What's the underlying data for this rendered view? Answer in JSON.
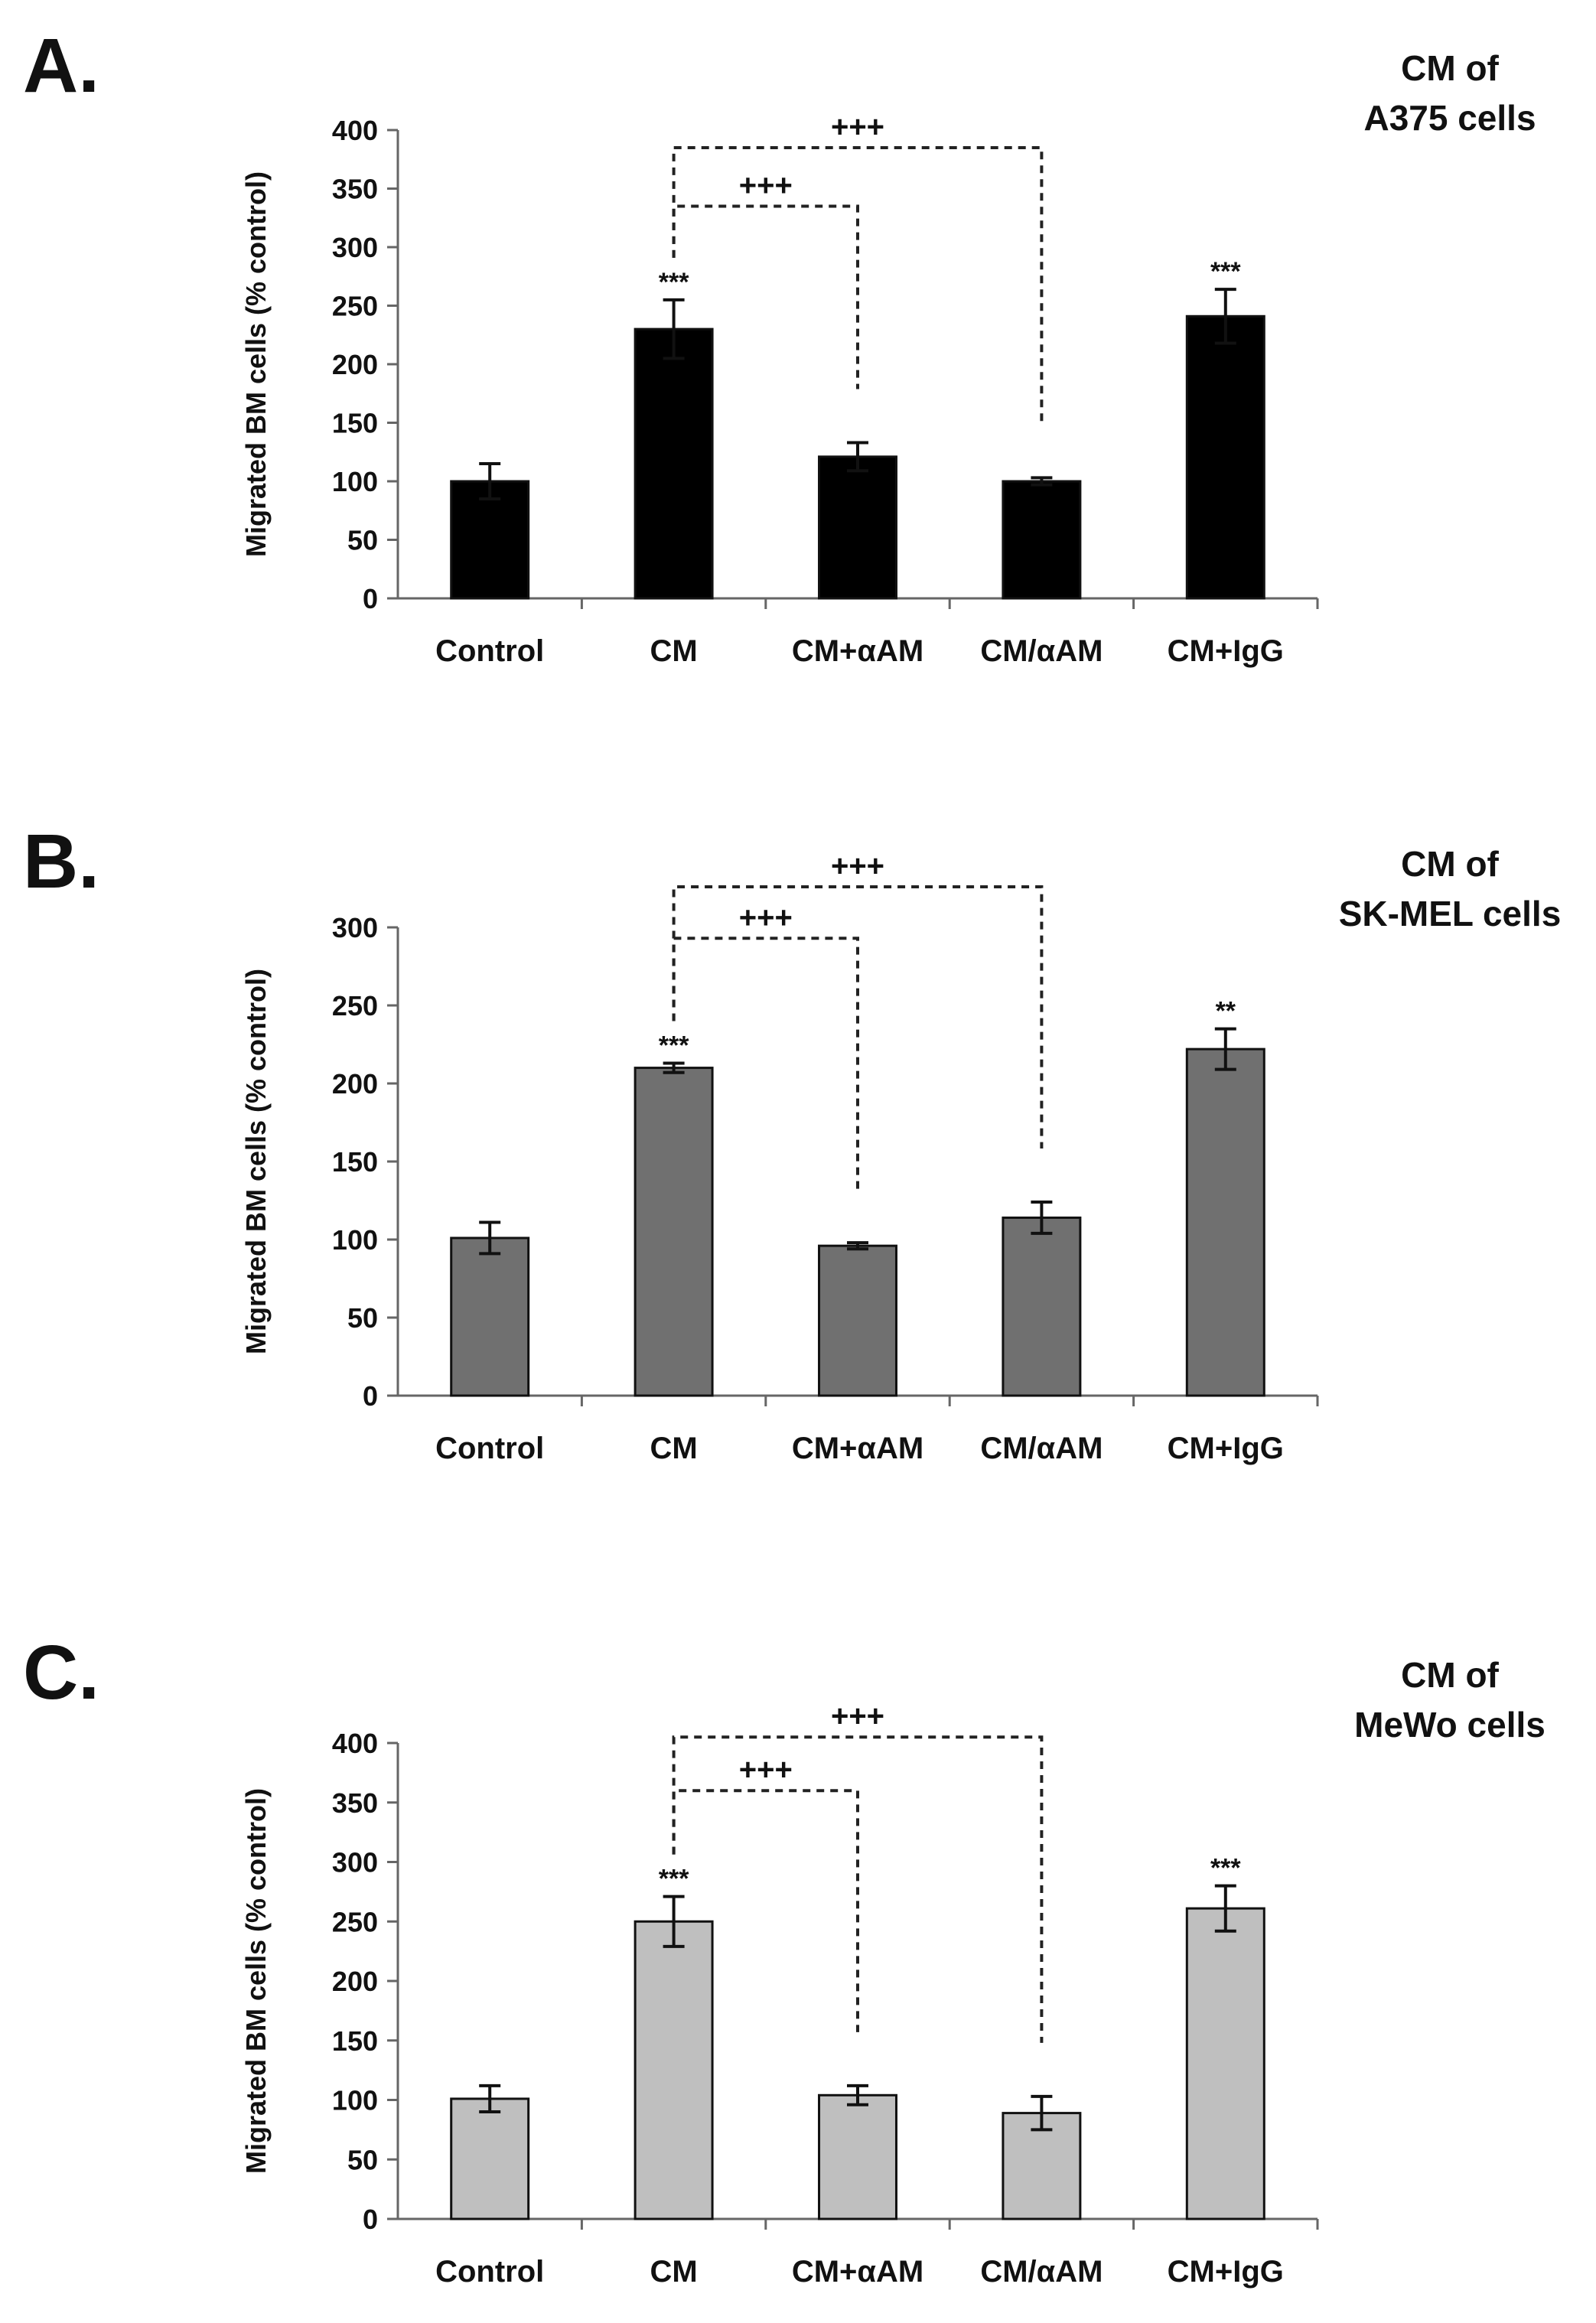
{
  "panels": [
    {
      "panel_label": "A.",
      "cell_title_1": "CM of",
      "cell_title_2": "A375 cells",
      "ylabel": "Migrated BM cells (% control)",
      "yticks": [
        "0",
        "50",
        "100",
        "150",
        "200",
        "250",
        "300",
        "350",
        "400"
      ],
      "categories": [
        "Control",
        "CM",
        "CM+αAM",
        "CM/αAM",
        "CM+IgG"
      ],
      "bar_color": "#000000",
      "significance": [
        "",
        "***",
        "",
        "",
        "***"
      ],
      "brackets": [
        {
          "from": 1,
          "to": 3,
          "label": "+++",
          "top": 385
        },
        {
          "from": 1,
          "to": 2,
          "label": "+++",
          "top": 335
        }
      ]
    },
    {
      "panel_label": "B.",
      "cell_title_1": "CM of",
      "cell_title_2": "SK-MEL cells",
      "ylabel": "Migrated BM cells (% control)",
      "yticks": [
        "0",
        "50",
        "100",
        "150",
        "200",
        "250",
        "300"
      ],
      "categories": [
        "Control",
        "CM",
        "CM+αAM",
        "CM/αAM",
        "CM+IgG"
      ],
      "bar_color": "#707070",
      "significance": [
        "",
        "***",
        "",
        "",
        "**"
      ],
      "brackets": [
        {
          "from": 1,
          "to": 3,
          "label": "+++",
          "top": 326
        },
        {
          "from": 1,
          "to": 2,
          "label": "+++",
          "top": 293
        }
      ]
    },
    {
      "panel_label": "C.",
      "cell_title_1": "CM of",
      "cell_title_2": "MeWo cells",
      "ylabel": "Migrated BM cells (% control)",
      "yticks": [
        "0",
        "50",
        "100",
        "150",
        "200",
        "250",
        "300",
        "350",
        "400"
      ],
      "categories": [
        "Control",
        "CM",
        "CM+αAM",
        "CM/αAM",
        "CM+IgG"
      ],
      "bar_color": "#bfbfbf",
      "significance": [
        "",
        "***",
        "",
        "",
        "***"
      ],
      "brackets": [
        {
          "from": 1,
          "to": 3,
          "label": "+++",
          "top": 405
        },
        {
          "from": 1,
          "to": 2,
          "label": "+++",
          "top": 360
        }
      ]
    }
  ],
  "chart_data": [
    {
      "type": "bar",
      "title": "",
      "xlabel": "",
      "ylabel": "Migrated BM cells (% control)",
      "ylim": [
        0,
        400
      ],
      "grid": false,
      "categories": [
        "Control",
        "CM",
        "CM+αAM",
        "CM/αAM",
        "CM+IgG"
      ],
      "values": [
        100,
        230,
        121,
        100,
        241
      ],
      "errors": [
        15,
        25,
        12,
        3,
        23
      ]
    },
    {
      "type": "bar",
      "title": "",
      "xlabel": "",
      "ylabel": "Migrated BM cells (% control)",
      "ylim": [
        0,
        300
      ],
      "grid": false,
      "categories": [
        "Control",
        "CM",
        "CM+αAM",
        "CM/αAM",
        "CM+IgG"
      ],
      "values": [
        101,
        210,
        96,
        114,
        222
      ],
      "errors": [
        10,
        3,
        2,
        10,
        13
      ]
    },
    {
      "type": "bar",
      "title": "",
      "xlabel": "",
      "ylabel": "Migrated BM cells (% control)",
      "ylim": [
        0,
        400
      ],
      "grid": false,
      "categories": [
        "Control",
        "CM",
        "CM+αAM",
        "CM/αAM",
        "CM+IgG"
      ],
      "values": [
        101,
        250,
        104,
        89,
        261
      ],
      "errors": [
        11,
        21,
        8,
        14,
        19
      ]
    }
  ]
}
